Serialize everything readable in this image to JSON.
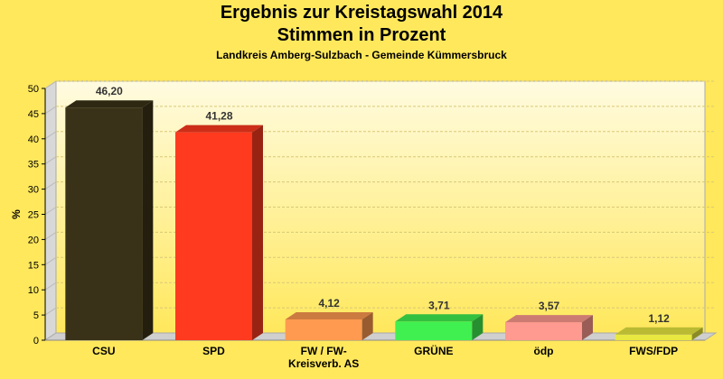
{
  "chart_data": {
    "type": "bar",
    "title": "Ergebnis zur Kreistagswahl 2014",
    "title_line2": "Stimmen in Prozent",
    "subtitle": "Landkreis Amberg-Sulzbach - Gemeinde Kümmersbruck",
    "ylabel": "%",
    "xlabel": "",
    "ylim": [
      0,
      50
    ],
    "yticks": [
      0,
      5,
      10,
      15,
      20,
      25,
      30,
      35,
      40,
      45,
      50
    ],
    "grid": true,
    "categories": [
      "CSU",
      "SPD",
      "FW / FW-\nKreisverb. AS",
      "GRÜNE",
      "ödp",
      "FWS/FDP"
    ],
    "values": [
      46.2,
      41.28,
      4.12,
      3.71,
      3.57,
      1.12
    ],
    "value_labels": [
      "46,20",
      "41,28",
      "4,12",
      "3,71",
      "3,57",
      "1,12"
    ],
    "colors": [
      "#3a3218",
      "#ff3a1e",
      "#ff9a50",
      "#40f050",
      "#ff9a90",
      "#e8e840"
    ]
  }
}
